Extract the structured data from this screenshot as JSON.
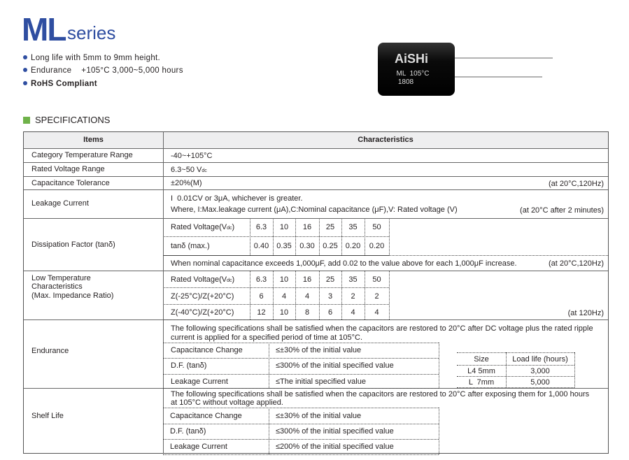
{
  "header": {
    "title_bold": "ML",
    "title_light": "series",
    "features": [
      "Long life with 5mm to 9mm height.",
      "Endurance    +105°C 3,000~5,000 hours",
      "RoHS Compliant"
    ],
    "product_image": {
      "brand": "AiSHi",
      "marking": "ML  105°C",
      "code": "1808"
    }
  },
  "section_title": "SPECIFICATIONS",
  "colors": {
    "brand": "#2f4ea1",
    "section_marker": "#6fb24a"
  },
  "table": {
    "headers": [
      "Items",
      "Characteristics"
    ],
    "category_temp": {
      "label": "Category Temperature Range",
      "value": "-40~+105°C"
    },
    "rated_voltage": {
      "label": "Rated Voltage Range",
      "value": "6.3~50 V",
      "unit_sub": "dc"
    },
    "cap_tolerance": {
      "label": "Capacitance Tolerance",
      "value": "±20%(M)",
      "cond": "(at 20°C,120Hz)"
    },
    "leakage": {
      "label": "Leakage Current",
      "line1": "I  0.01CV or 3μA, whichever is greater.",
      "line2": "Where, I:Max.leakage current (μA),C:Nominal capacitance (μF),V: Rated voltage (V)",
      "cond": "(at 20°C after 2 minutes)"
    },
    "dissipation": {
      "label": "Dissipation Factor (tanδ)",
      "row_labels": [
        "Rated Voltage(V",
        "tanδ (max.)"
      ],
      "row_label_sub": "dc",
      "voltages": [
        "6.3",
        "10",
        "16",
        "25",
        "35",
        "50"
      ],
      "tan": [
        "0.40",
        "0.35",
        "0.30",
        "0.25",
        "0.20",
        "0.20"
      ],
      "note": "When nominal capacitance exceeds 1,000μF, add 0.02 to the value above for each 1,000μF increase.",
      "cond": "(at 20°C,120Hz)"
    },
    "low_temp": {
      "label": [
        "Low Temperature",
        "Characteristics",
        "(Max. Impedance Ratio)"
      ],
      "row_labels": [
        "Rated Voltage(V",
        "Z(-25°C)/Z(+20°C)",
        "Z(-40°C)/Z(+20°C)"
      ],
      "voltages": [
        "6.3",
        "10",
        "16",
        "25",
        "35",
        "50"
      ],
      "z25": [
        "6",
        "4",
        "4",
        "3",
        "2",
        "2"
      ],
      "z40": [
        "12",
        "10",
        "8",
        "6",
        "4",
        "4"
      ],
      "cond": "(at 120Hz)"
    },
    "endurance": {
      "label": "Endurance",
      "text1": "The following specifications shall be satisfied when the capacitors are restored to 20°C after DC voltage plus the rated ripple",
      "text2": "current is applied for a specified period of time at 105°C.",
      "rows": [
        [
          "Capacitance Change",
          "≤±30% of the initial value"
        ],
        [
          "D.F. (tanδ)",
          "≤300% of the initial specified value"
        ],
        [
          "Leakage Current",
          "≤The initial specified value"
        ]
      ],
      "life_headers": [
        "Size",
        "Load life (hours)"
      ],
      "life_rows": [
        [
          "L4 5mm",
          "3,000"
        ],
        [
          "L  7mm",
          "5,000"
        ]
      ]
    },
    "shelf": {
      "label": "Shelf Life",
      "text1": "The following specifications shall be satisfied when the capacitors are restored to 20°C after exposing them for 1,000 hours",
      "text2": "at 105°C without voltage applied.",
      "rows": [
        [
          "Capacitance Change",
          "≤±30% of the initial value"
        ],
        [
          "D.F. (tanδ)",
          "≤300% of the initial specified value"
        ],
        [
          "Leakage Current",
          "≤200% of the initial specified value"
        ]
      ]
    }
  }
}
